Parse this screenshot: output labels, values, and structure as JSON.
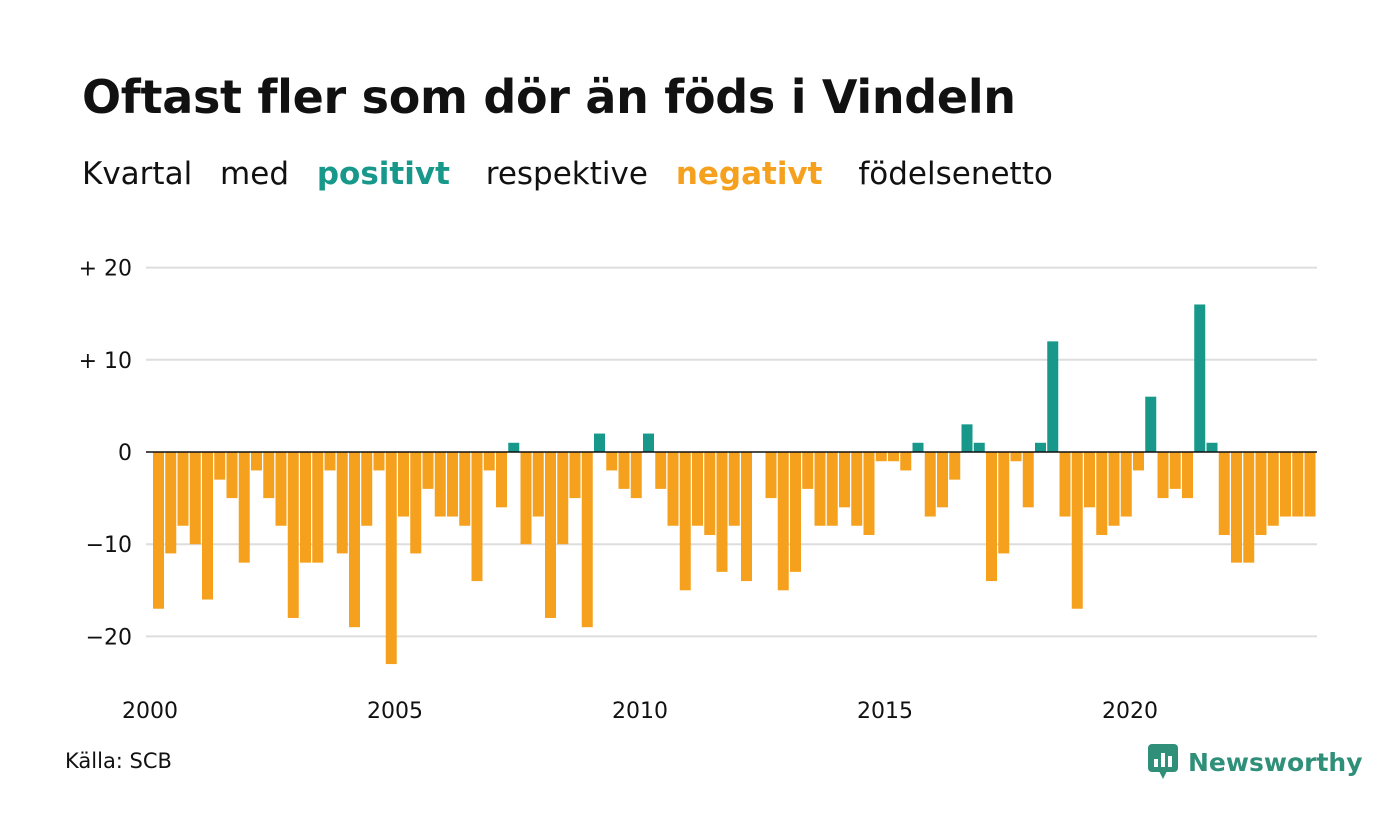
{
  "header": {
    "title": "Oftast fler som dör än föds i Vindeln",
    "subtitle_parts": [
      "Kvartal",
      "med",
      "positivt",
      "respektive",
      "negativt",
      "födelsenetto"
    ]
  },
  "footer": {
    "source": "Källa: SCB",
    "brand": "Newsworthy"
  },
  "colors": {
    "positive": "#17988a",
    "negative": "#f5a11d",
    "grid": "#dddddd",
    "zero_line": "#111111",
    "logo": "#2f8f78"
  },
  "icons": {
    "logo": "bar-chart-speech-icon"
  },
  "chart_data": {
    "type": "bar",
    "title": "Oftast fler som dör än föds i Vindeln",
    "xlabel": "",
    "ylabel": "",
    "ylim": [
      -25,
      20
    ],
    "yticks": [
      20,
      10,
      0,
      -10,
      -20
    ],
    "ytick_labels": [
      "+ 20",
      "+ 10",
      "0",
      "−10",
      "−20"
    ],
    "xtick_labels": [
      "2000",
      "2005",
      "2010",
      "2015",
      "2020"
    ],
    "grid": true,
    "x_start": "2000 Q1",
    "period": "quarter",
    "values": [
      -17,
      -11,
      -8,
      -10,
      -16,
      -3,
      -5,
      -12,
      -2,
      -5,
      -8,
      -18,
      -12,
      -12,
      -2,
      -11,
      -19,
      -8,
      -2,
      -23,
      -7,
      -11,
      -4,
      -7,
      -7,
      -8,
      -14,
      -2,
      -6,
      1,
      -10,
      -7,
      -18,
      -10,
      -5,
      -19,
      2,
      -2,
      -4,
      -5,
      2,
      -4,
      -8,
      -15,
      -8,
      -9,
      -13,
      -8,
      -14,
      0,
      -5,
      -15,
      -13,
      -4,
      -8,
      -8,
      -6,
      -8,
      -9,
      -1,
      -1,
      -2,
      1,
      -7,
      -6,
      -3,
      3,
      1,
      -14,
      -11,
      -1,
      -6,
      1,
      12,
      -7,
      -17,
      -6,
      -9,
      -8,
      -7,
      -2,
      6,
      -5,
      -4,
      -5,
      16,
      1,
      -9,
      -12,
      -12,
      -9,
      -8,
      -7,
      -7,
      -7
    ]
  }
}
